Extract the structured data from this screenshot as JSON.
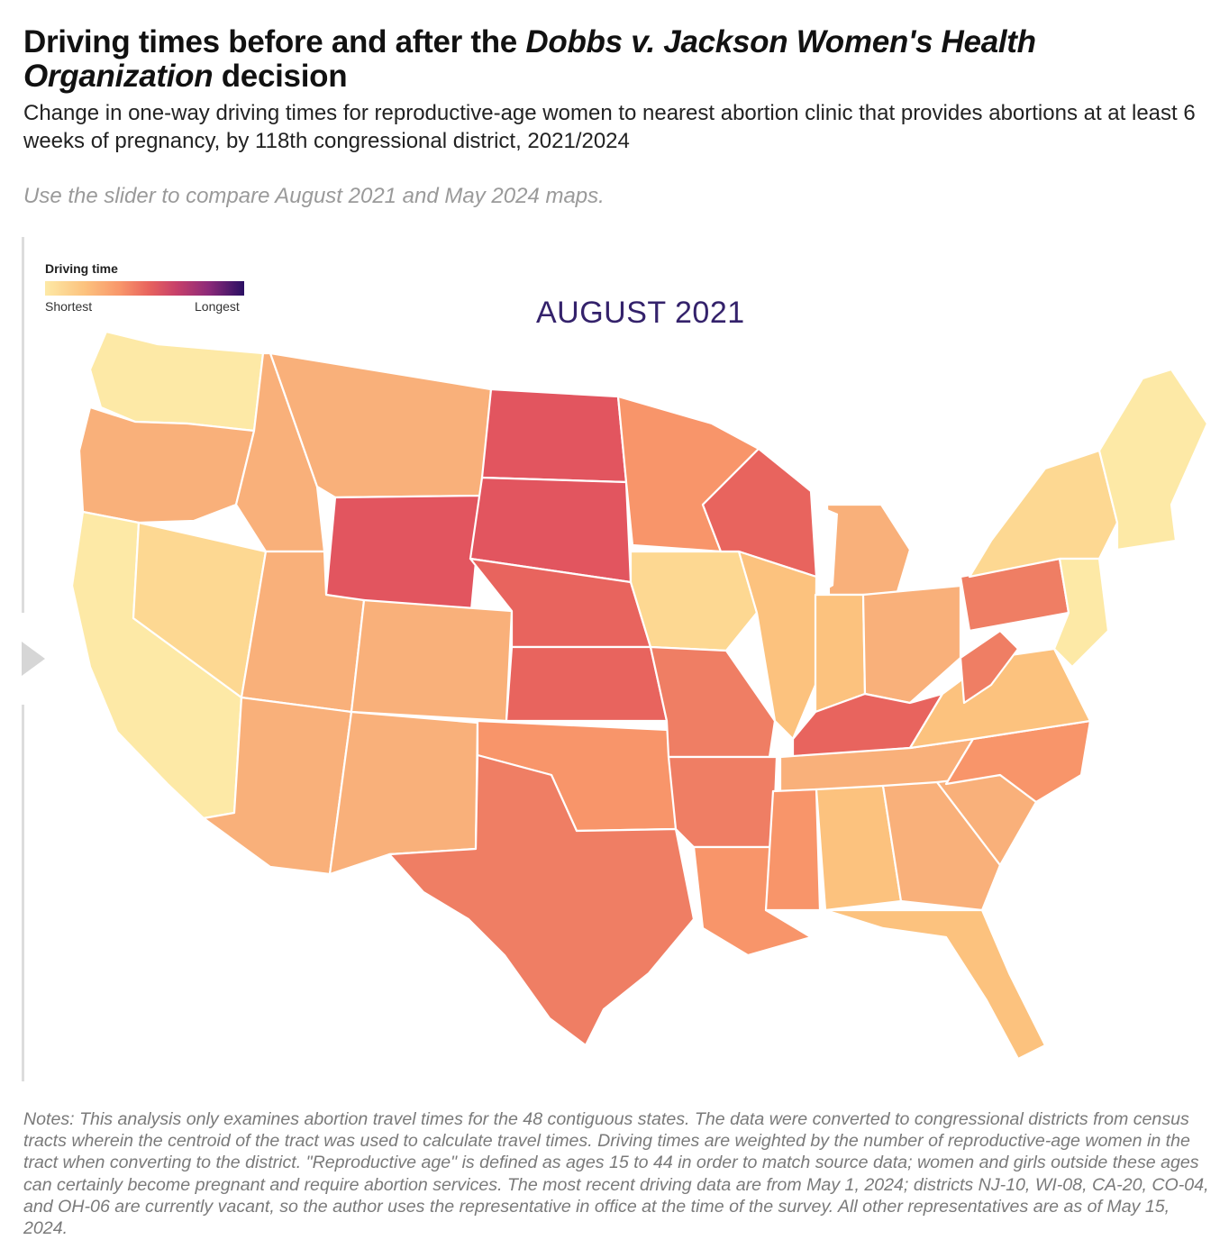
{
  "header": {
    "title_before": "Driving times before and after the ",
    "title_italic": "Dobbs v. Jackson Women's Health Organization",
    "title_after": " decision",
    "subtitle": "Change in one-way driving times for reproductive-age women to nearest abortion clinic that provides abortions at at least 6 weeks of pregnancy, by 118th congressional district, 2021/2024",
    "instruction": "Use the slider to compare August 2021 and May 2024 maps."
  },
  "legend": {
    "title": "Driving time",
    "low_label": "Shortest",
    "high_label": "Longest"
  },
  "map": {
    "period_label": "AUGUST 2021",
    "colors": {
      "c1": "#fde9a6",
      "c2": "#fdd892",
      "c3": "#fcc27e",
      "c4": "#f9b07a",
      "c5": "#f8956a",
      "c6": "#ef7e64",
      "c7": "#e8645e",
      "c8": "#e2555f",
      "c9": "#c7406a",
      "border": "#ffffff"
    }
  },
  "notes": "Notes: This analysis only examines abortion travel times for the 48 contiguous states. The data were converted to congressional districts from census tracts wherein the centroid of the tract was used to calculate travel times. Driving times are weighted by the number of reproductive-age women in the tract when converting to the district. \"Reproductive age\" is defined as ages 15 to 44 in order to match source data; women and girls outside these ages can certainly become pregnant and require abortion services. The most recent driving data are from May 1, 2024; districts NJ-10, WI-08, CA-20, CO-04, and OH-06 are currently vacant, so the author uses the representative in office at the time of the survey. All other representatives are as of May 15, 2024."
}
